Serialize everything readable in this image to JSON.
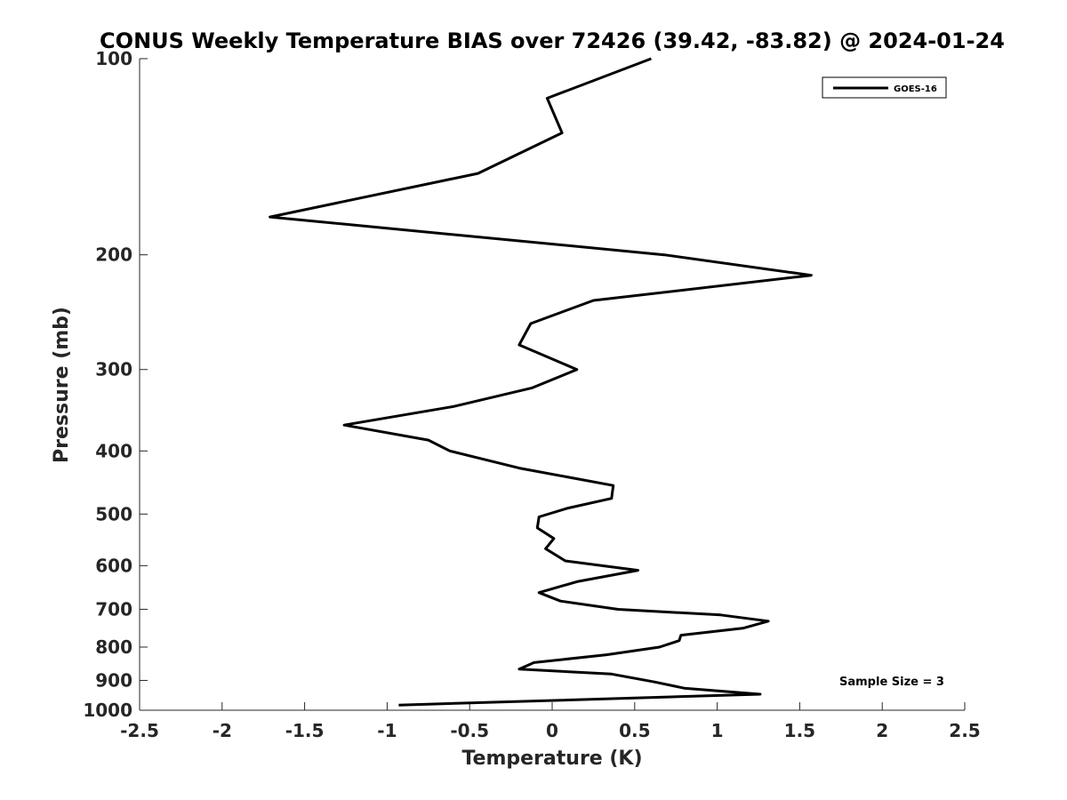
{
  "chart_data": {
    "type": "line",
    "title": "CONUS Weekly Temperature BIAS over 72426 (39.42, -83.82) @ 2024-01-24",
    "xlabel": "Temperature (K)",
    "ylabel": "Pressure (mb)",
    "xlim": [
      -2.5,
      2.5
    ],
    "ylim": [
      100,
      1000
    ],
    "y_scale": "log",
    "y_reversed": true,
    "x_ticks": [
      -2.5,
      -2,
      -1.5,
      -1,
      -0.5,
      0,
      0.5,
      1,
      1.5,
      2,
      2.5
    ],
    "x_tick_labels": [
      "-2.5",
      "-2",
      "-1.5",
      "-1",
      "-0.5",
      "0",
      "0.5",
      "1",
      "1.5",
      "2",
      "2.5"
    ],
    "y_ticks": [
      100,
      200,
      300,
      400,
      500,
      600,
      700,
      800,
      900,
      1000
    ],
    "y_tick_labels": [
      "100",
      "200",
      "300",
      "400",
      "500",
      "600",
      "700",
      "800",
      "900",
      "1000"
    ],
    "grid": false,
    "legend_position": "top-right",
    "series": [
      {
        "name": "GOES-16",
        "color": "#000000",
        "points": [
          {
            "x": 0.6,
            "p": 100
          },
          {
            "x": -0.03,
            "p": 115
          },
          {
            "x": 0.06,
            "p": 130
          },
          {
            "x": -0.45,
            "p": 150
          },
          {
            "x": -1.71,
            "p": 175
          },
          {
            "x": 0.68,
            "p": 200
          },
          {
            "x": 1.57,
            "p": 215
          },
          {
            "x": 0.25,
            "p": 235
          },
          {
            "x": -0.13,
            "p": 255
          },
          {
            "x": -0.2,
            "p": 275
          },
          {
            "x": 0.15,
            "p": 300
          },
          {
            "x": -0.12,
            "p": 320
          },
          {
            "x": -0.6,
            "p": 342
          },
          {
            "x": -1.26,
            "p": 365
          },
          {
            "x": -0.75,
            "p": 385
          },
          {
            "x": -0.62,
            "p": 400
          },
          {
            "x": -0.2,
            "p": 425
          },
          {
            "x": 0.37,
            "p": 452
          },
          {
            "x": 0.36,
            "p": 473
          },
          {
            "x": 0.09,
            "p": 490
          },
          {
            "x": -0.08,
            "p": 505
          },
          {
            "x": -0.09,
            "p": 525
          },
          {
            "x": 0.01,
            "p": 545
          },
          {
            "x": -0.04,
            "p": 565
          },
          {
            "x": 0.08,
            "p": 590
          },
          {
            "x": 0.52,
            "p": 610
          },
          {
            "x": 0.15,
            "p": 635
          },
          {
            "x": -0.08,
            "p": 660
          },
          {
            "x": 0.05,
            "p": 680
          },
          {
            "x": 0.4,
            "p": 700
          },
          {
            "x": 1.02,
            "p": 714
          },
          {
            "x": 1.31,
            "p": 730
          },
          {
            "x": 1.16,
            "p": 748
          },
          {
            "x": 0.78,
            "p": 767
          },
          {
            "x": 0.77,
            "p": 782
          },
          {
            "x": 0.65,
            "p": 800
          },
          {
            "x": 0.33,
            "p": 822
          },
          {
            "x": -0.11,
            "p": 845
          },
          {
            "x": -0.2,
            "p": 865
          },
          {
            "x": 0.36,
            "p": 880
          },
          {
            "x": 0.62,
            "p": 905
          },
          {
            "x": 0.8,
            "p": 925
          },
          {
            "x": 1.26,
            "p": 945
          },
          {
            "x": -0.93,
            "p": 982
          }
        ]
      }
    ],
    "annotations": [
      {
        "text": "Sample Size = 3",
        "position": "bottom-right"
      }
    ]
  }
}
